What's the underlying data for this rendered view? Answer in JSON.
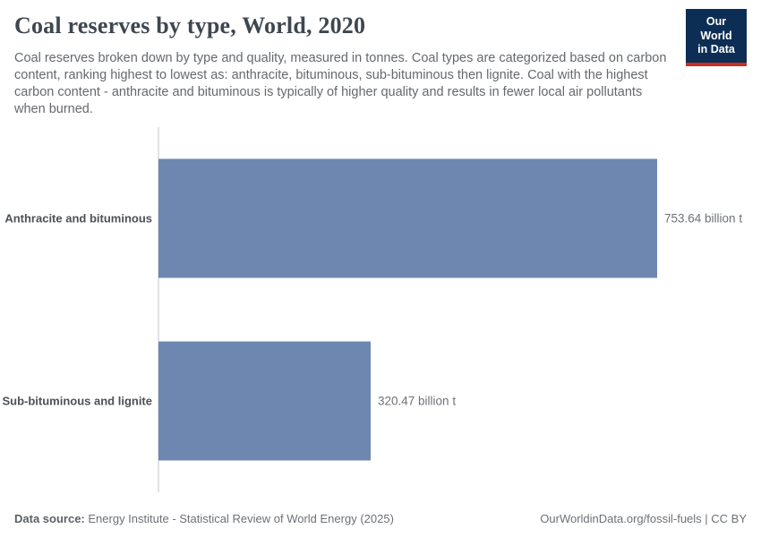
{
  "header": {
    "title": "Coal reserves by type, World, 2020",
    "subtitle": "Coal reserves broken down by type and quality, measured in tonnes. Coal types are categorized based on carbon content, ranking highest to lowest as: anthracite, bituminous, sub-bituminous then lignite. Coal with the highest carbon content - anthracite and bituminous is typically of higher quality and results in fewer local air pollutants when burned.",
    "logo": {
      "line1": "Our World",
      "line2": "in Data",
      "bg_color": "#0d2e54",
      "stripe_color": "#cc2d23"
    }
  },
  "chart_data": {
    "type": "bar",
    "orientation": "horizontal",
    "title": "Coal reserves by type, World, 2020",
    "unit": "billion t",
    "categories": [
      "Anthracite and bituminous",
      "Sub-bituminous and lignite"
    ],
    "values": [
      753.64,
      320.47
    ],
    "value_labels": [
      "753.64 billion t",
      "320.47 billion t"
    ],
    "bar_color": "#6d87b0",
    "axis_color": "#e0e2e4",
    "grid": false,
    "legend": "none",
    "xlim": [
      0,
      753.64
    ]
  },
  "footer": {
    "source_label": "Data source:",
    "source_text": "Energy Institute - Statistical Review of World Energy (2025)",
    "credit": "OurWorldinData.org/fossil-fuels | CC BY"
  }
}
